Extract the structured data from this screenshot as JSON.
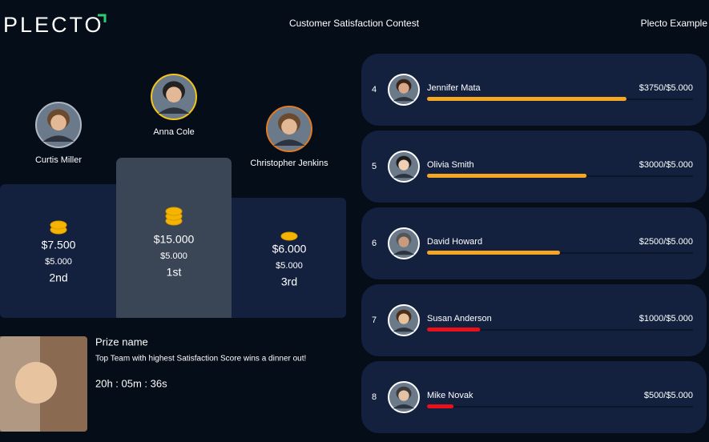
{
  "header": {
    "logo": "PLECTO",
    "title": "Customer Satisfaction Contest",
    "account": "Plecto Example"
  },
  "podium": [
    {
      "name": "Curtis Miller",
      "prize": "$7.500",
      "target": "$5.000",
      "place": "2nd"
    },
    {
      "name": "Anna Cole",
      "prize": "$15.000",
      "target": "$5.000",
      "place": "1st"
    },
    {
      "name": "Christopher Jenkins",
      "prize": "$6.000",
      "target": "$5.000",
      "place": "3rd"
    }
  ],
  "leaderboard": [
    {
      "rank": 4,
      "name": "Jennifer Mata",
      "score": "$3750/$5.000",
      "progress": 75,
      "color": "#f5a623"
    },
    {
      "rank": 5,
      "name": "Olivia Smith",
      "score": "$3000/$5.000",
      "progress": 60,
      "color": "#f5a623"
    },
    {
      "rank": 6,
      "name": "David Howard",
      "score": "$2500/$5.000",
      "progress": 50,
      "color": "#f5a623"
    },
    {
      "rank": 7,
      "name": "Susan Anderson",
      "score": "$1000/$5.000",
      "progress": 20,
      "color": "#e8101a"
    },
    {
      "rank": 8,
      "name": "Mike Novak",
      "score": "$500/$5.000",
      "progress": 10,
      "color": "#e8101a"
    }
  ],
  "prize": {
    "heading": "Prize name",
    "description": "Top Team with highest Satisfaction Score wins a dinner out!",
    "countdown": "20h : 05m : 36s"
  }
}
